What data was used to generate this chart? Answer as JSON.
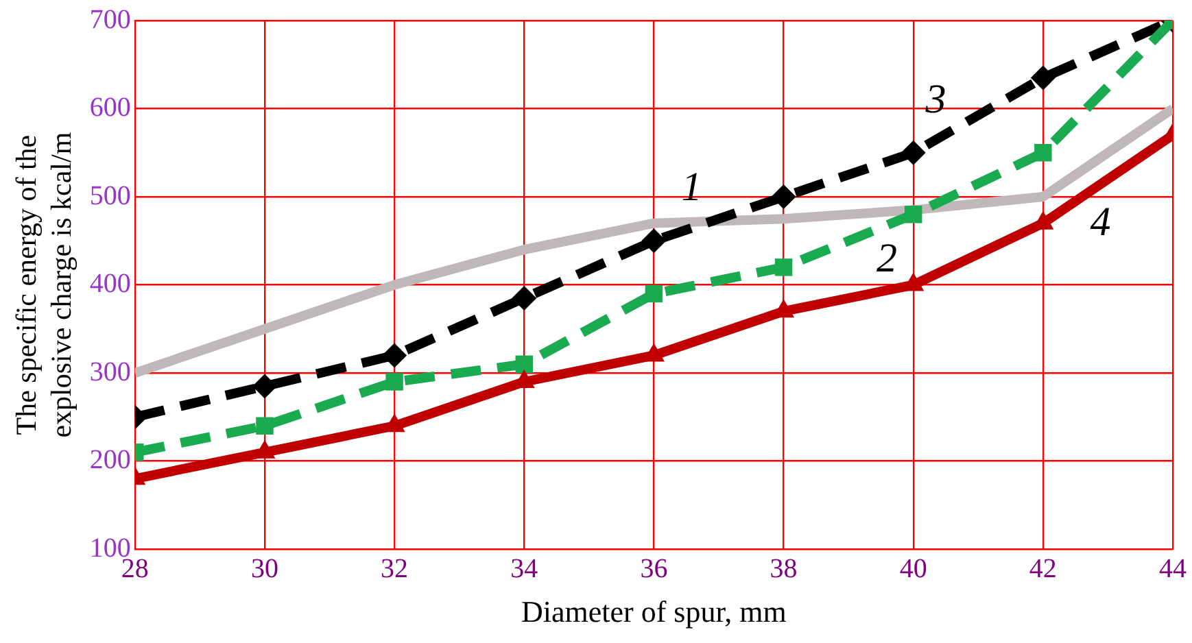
{
  "chart_data": {
    "type": "line",
    "xlabel": "Diameter of spur, mm",
    "ylabel": "The specific energy of the explosive charge is kcal/m",
    "x": [
      28,
      30,
      32,
      34,
      36,
      38,
      40,
      42,
      44
    ],
    "xlim": [
      28,
      44
    ],
    "xticks": [
      28,
      30,
      32,
      34,
      36,
      38,
      40,
      42,
      44
    ],
    "ylim": [
      100,
      700
    ],
    "yticks": [
      100,
      200,
      300,
      400,
      500,
      600,
      700
    ],
    "grid": true,
    "legend": false,
    "series": [
      {
        "name": "1",
        "color": "#c0b8b8",
        "marker": "none",
        "line_style": "solid",
        "values": [
          300,
          350,
          400,
          440,
          470,
          475,
          485,
          500,
          600
        ]
      },
      {
        "name": "3",
        "color": "#000000",
        "marker": "diamond",
        "line_style": "dashed",
        "values": [
          250,
          285,
          320,
          385,
          450,
          500,
          550,
          635,
          700
        ]
      },
      {
        "name": "2",
        "color": "#1aaa50",
        "marker": "square",
        "line_style": "dashed",
        "values": [
          210,
          240,
          290,
          310,
          390,
          420,
          480,
          550,
          700
        ]
      },
      {
        "name": "4",
        "color": "#c00000",
        "marker": "triangle",
        "line_style": "solid",
        "values": [
          180,
          210,
          240,
          290,
          320,
          370,
          400,
          470,
          570
        ]
      }
    ]
  }
}
